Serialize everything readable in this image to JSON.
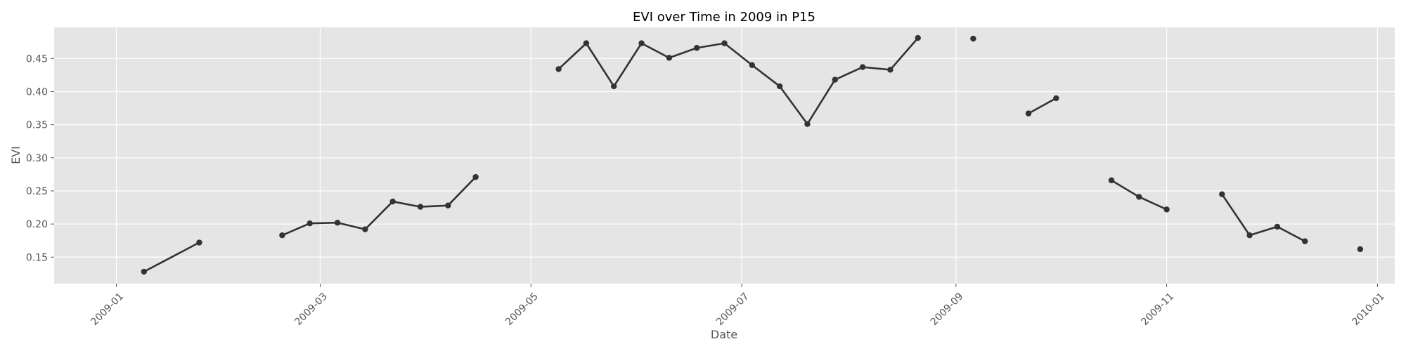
{
  "chart_data": {
    "type": "line",
    "title": "EVI over Time in 2009 in P15",
    "xlabel": "Date",
    "ylabel": "EVI",
    "x_is_date": true,
    "xlim": [
      "2008-12-14",
      "2010-01-06"
    ],
    "ylim": [
      0.11,
      0.497
    ],
    "grid": true,
    "background_color": "#e5e5e5",
    "series_color": "#333333",
    "xticks": [
      "2009-01",
      "2009-03",
      "2009-05",
      "2009-07",
      "2009-09",
      "2009-11",
      "2010-01"
    ],
    "yticks": [
      "0.15",
      "0.20",
      "0.25",
      "0.30",
      "0.35",
      "0.40",
      "0.45"
    ],
    "series": [
      {
        "points": [
          [
            "2009-01-09",
            0.128
          ],
          [
            "2009-01-25",
            0.172
          ],
          null,
          [
            "2009-02-18",
            0.183
          ],
          [
            "2009-02-26",
            0.201
          ],
          [
            "2009-03-06",
            0.202
          ],
          [
            "2009-03-14",
            0.192
          ],
          [
            "2009-03-22",
            0.234
          ],
          [
            "2009-03-30",
            0.226
          ],
          [
            "2009-04-07",
            0.228
          ],
          [
            "2009-04-15",
            0.271
          ],
          null,
          [
            "2009-05-09",
            0.434
          ],
          [
            "2009-05-17",
            0.473
          ],
          [
            "2009-05-25",
            0.408
          ],
          [
            "2009-06-02",
            0.473
          ],
          [
            "2009-06-10",
            0.451
          ],
          [
            "2009-06-18",
            0.466
          ],
          [
            "2009-06-26",
            0.473
          ],
          [
            "2009-07-04",
            0.44
          ],
          [
            "2009-07-12",
            0.408
          ],
          [
            "2009-07-20",
            0.351
          ],
          [
            "2009-07-28",
            0.418
          ],
          [
            "2009-08-05",
            0.437
          ],
          [
            "2009-08-13",
            0.433
          ],
          [
            "2009-08-21",
            0.481
          ],
          null,
          [
            "2009-09-06",
            0.48
          ],
          null,
          [
            "2009-09-22",
            0.367
          ],
          [
            "2009-09-30",
            0.39
          ],
          null,
          [
            "2009-10-16",
            0.266
          ],
          [
            "2009-10-24",
            0.241
          ],
          [
            "2009-11-01",
            0.222
          ],
          null,
          [
            "2009-11-17",
            0.245
          ],
          [
            "2009-11-25",
            0.183
          ],
          [
            "2009-12-03",
            0.196
          ],
          [
            "2009-12-11",
            0.174
          ],
          null,
          [
            "2009-12-27",
            0.162
          ]
        ]
      }
    ]
  }
}
